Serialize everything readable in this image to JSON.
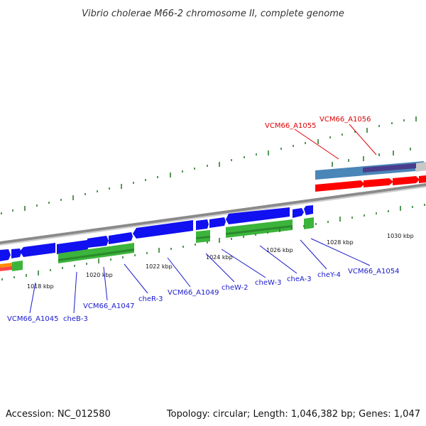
{
  "title": "Vibrio cholerae M66-2 chromosome II, complete genome",
  "accession": "Accession: NC_012580",
  "topology": "Topology: circular; Length: 1,046,382 bp; Genes: 1,047",
  "colors": {
    "gene_forward": "#0000ff",
    "cds_green": "#3cb43c",
    "highlight_red": "#ff0000",
    "steelblue_feature": "#4a86b8",
    "purple_feature": "#4b3c8c",
    "backbone": "#9a9a9a",
    "label_blue": "#1a1acc",
    "label_red": "#e00000",
    "tick_green": "#2e7d2e"
  },
  "scale_labels": [
    "1018 kbp",
    "1020 kbp",
    "1022 kbp",
    "1024 kbp",
    "1026 kbp",
    "1028 kbp",
    "1030 kbp"
  ],
  "gene_labels": [
    {
      "text": "VCM66_A1055",
      "color": "red"
    },
    {
      "text": "VCM66_A1056",
      "color": "red"
    },
    {
      "text": "VCM66_A1045",
      "color": "blue"
    },
    {
      "text": "cheB-3",
      "color": "blue"
    },
    {
      "text": "VCM66_A1047",
      "color": "blue"
    },
    {
      "text": "cheR-3",
      "color": "blue"
    },
    {
      "text": "VCM66_A1049",
      "color": "blue"
    },
    {
      "text": "cheW-2",
      "color": "blue"
    },
    {
      "text": "cheW-3",
      "color": "blue"
    },
    {
      "text": "cheA-3",
      "color": "blue"
    },
    {
      "text": "cheY-4",
      "color": "blue"
    },
    {
      "text": "VCM66_A1054",
      "color": "blue"
    }
  ]
}
